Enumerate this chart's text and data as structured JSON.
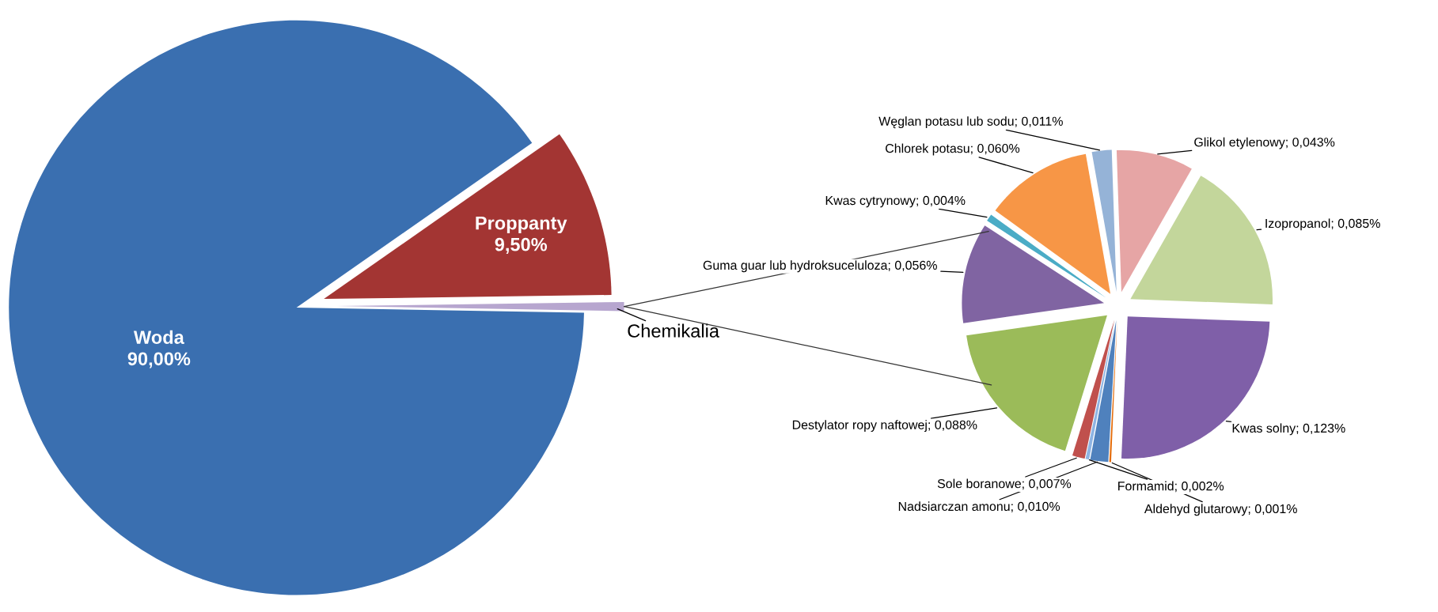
{
  "chart_data": [
    {
      "type": "pie",
      "categories": [
        "Woda",
        "Proppanty",
        "Chemikalia"
      ],
      "values": [
        90.0,
        9.5,
        0.5
      ],
      "colors": [
        "#3a6fb0",
        "#a33533",
        "#b7a6cf"
      ],
      "value_labels": [
        "90,00%",
        "9,50%",
        null
      ]
    },
    {
      "type": "pie",
      "categories": [
        "Węglan potasu lub sodu",
        "Glikol etylenowy",
        "Izopropanol",
        "Kwas solny",
        "Aldehyd glutarowy",
        "Nadsiarczan amonu",
        "Formamid",
        "Sole boranowe",
        "Destylator ropy naftowej",
        "Guma guar lub hydroksuceluloza",
        "Kwas cytrynowy",
        "Chlorek potasu"
      ],
      "values": [
        0.011,
        0.043,
        0.085,
        0.123,
        0.001,
        0.01,
        0.002,
        0.007,
        0.088,
        0.056,
        0.004,
        0.06
      ],
      "colors": [
        "#95b3d7",
        "#e6a5a5",
        "#c3d69b",
        "#7f5fa8",
        "#e46c0a",
        "#4f81bd",
        "#8eb4e3",
        "#c0504d",
        "#9bbb59",
        "#8064a2",
        "#4bacc6",
        "#f79646"
      ],
      "value_labels": [
        "0,011%",
        "0,043%",
        "0,085%",
        "0,123%",
        "0,001%",
        "0,010%",
        "0,002%",
        "0,007%",
        "0,088%",
        "0,056%",
        "0,004%",
        "0,060%"
      ]
    }
  ]
}
